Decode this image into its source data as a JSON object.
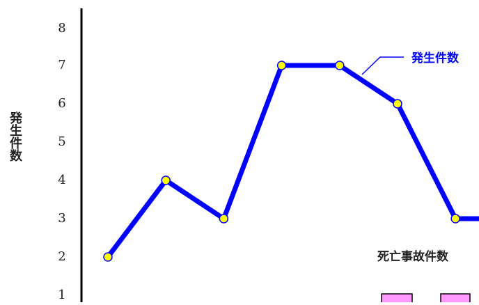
{
  "chart_data": {
    "type": "line",
    "ylabel": "発生件数",
    "y_ticks": [
      "1",
      "2",
      "3",
      "4",
      "5",
      "6",
      "7",
      "8"
    ],
    "ylim": [
      1,
      8
    ],
    "grid": false,
    "series": [
      {
        "name": "発生件数",
        "color": "#0000ff",
        "marker_color": "#ffff00",
        "values": [
          2,
          4,
          3,
          7,
          7,
          6,
          3,
          3
        ]
      }
    ],
    "secondary_series_label": "死亡事故件数",
    "secondary_bar_color": "#ff99ff"
  }
}
